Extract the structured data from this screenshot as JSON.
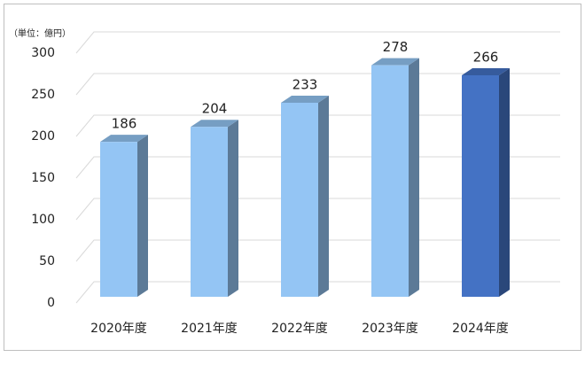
{
  "chart_data": {
    "type": "bar3d",
    "subtitle": "（単位：億円）",
    "categories": [
      "2020年度",
      "2021年度",
      "2022年度",
      "2023年度",
      "2024年度"
    ],
    "values": [
      186,
      204,
      233,
      278,
      266
    ],
    "colors": [
      "#94c5f4",
      "#94c5f4",
      "#94c5f4",
      "#94c5f4",
      "#4472c4"
    ],
    "ylim": [
      0,
      300
    ],
    "yticks": [
      0,
      50,
      100,
      150,
      200,
      250,
      300
    ],
    "grid": true
  }
}
